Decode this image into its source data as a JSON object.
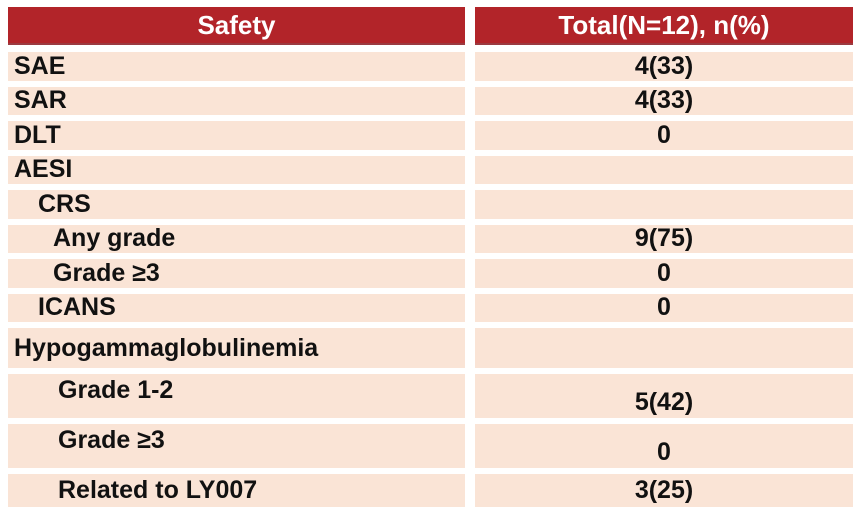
{
  "table": {
    "header": {
      "col1": "Safety",
      "col2": "Total(N=12), n(%)"
    },
    "rows": [
      {
        "label": "SAE",
        "value": "4(33)",
        "indent": 0
      },
      {
        "label": "SAR",
        "value": "4(33)",
        "indent": 0
      },
      {
        "label": "DLT",
        "value": "0",
        "indent": 0
      },
      {
        "label": "AESI",
        "value": "",
        "indent": 0
      },
      {
        "label": "CRS",
        "value": "",
        "indent": 1
      },
      {
        "label": "Any grade",
        "value": "9(75)",
        "indent": 2
      },
      {
        "label": "Grade ≥3",
        "value": "0",
        "indent": 2
      },
      {
        "label": "ICANS",
        "value": "0",
        "indent": 1
      },
      {
        "label": "Hypogammaglobulinemia",
        "value": "",
        "indent": 0
      },
      {
        "label": "Grade 1-2",
        "value": "5(42)",
        "indent": 3
      },
      {
        "label": "Grade ≥3",
        "value": "0",
        "indent": 3
      },
      {
        "label": "Related to LY007",
        "value": "3(25)",
        "indent": 3
      }
    ]
  },
  "theme": {
    "header-bg": "#B22429",
    "header-border": "#9B3A40",
    "header-text": "#FFFFFF",
    "row-bg": "#FAE4D6",
    "body-text": "#111111"
  }
}
